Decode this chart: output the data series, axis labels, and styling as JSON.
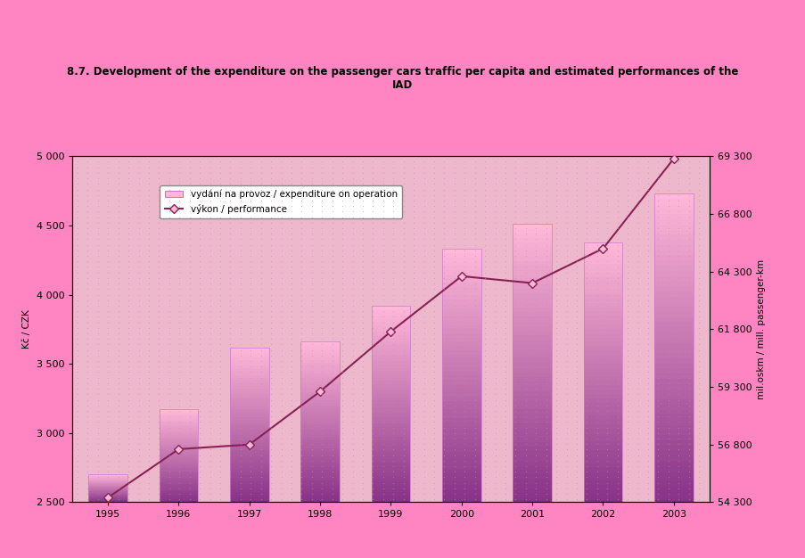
{
  "title_line1": "8.7. Development of the expenditure on the passenger cars traffic per capita and estimated performances of the",
  "title_line2": "IAD",
  "years": [
    1995,
    1996,
    1997,
    1998,
    1999,
    2000,
    2001,
    2002,
    2003
  ],
  "bar_values": [
    2700,
    3170,
    3620,
    3660,
    3920,
    4330,
    4510,
    4380,
    4730
  ],
  "line_values": [
    54500,
    56600,
    56800,
    59100,
    61700,
    64100,
    63800,
    65300,
    69200
  ],
  "ylabel_left": "Kč / CZK",
  "ylabel_right": "mil.oskm / mill. passenger-km",
  "ylim_left": [
    2500,
    5000
  ],
  "ylim_right": [
    54300,
    69300
  ],
  "yticks_left": [
    2500,
    3000,
    3500,
    4000,
    4500,
    5000
  ],
  "yticks_right": [
    54300,
    56800,
    59300,
    61800,
    64300,
    66800,
    69300
  ],
  "legend_bar_label": "vydání na provoz / expenditure on operation",
  "legend_line_label": "výkon / performance",
  "bg_outer": "#FF85C2",
  "bg_inner": "#EDB8CB",
  "bar_color_top": "#FFB8D8",
  "bar_color_bottom": "#883388",
  "line_color": "#882255",
  "marker_color": "#FFB8D8",
  "marker_edge_color": "#882255",
  "title_fontsize": 8.5,
  "axis_label_fontsize": 7.5,
  "tick_fontsize": 8
}
